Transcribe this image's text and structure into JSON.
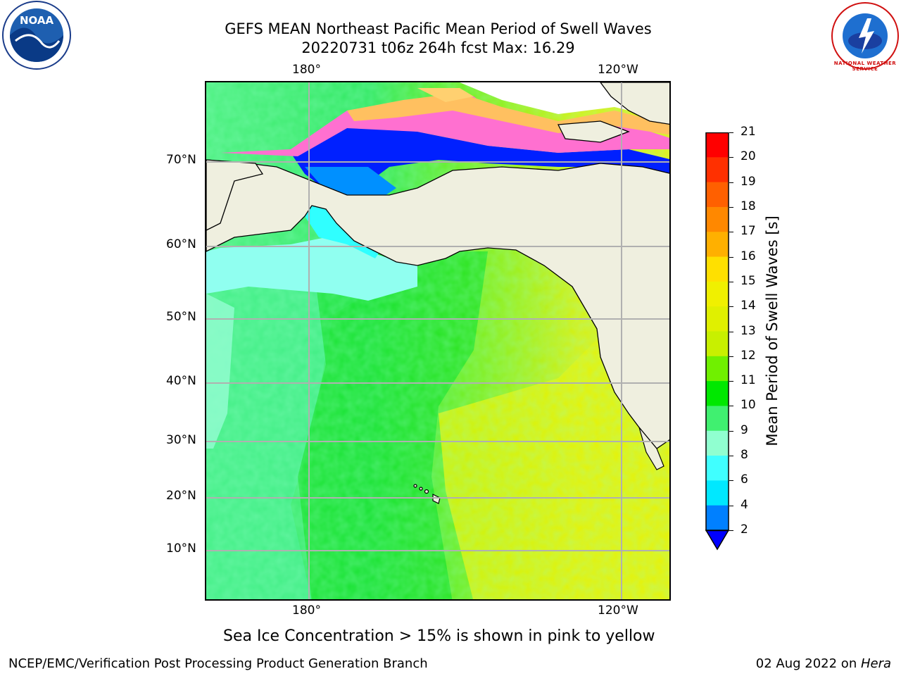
{
  "title": {
    "line1": "GEFS MEAN Northeast Pacific Mean Period of Swell Waves",
    "line2": "20220731 t06z 264h fcst   Max: 16.29"
  },
  "logos": {
    "left_text": "NOAA",
    "right_text": "NATIONAL WEATHER SERVICE",
    "left_icon": "noaa-logo",
    "right_icon": "nws-logo"
  },
  "map": {
    "lon_labels_top": [
      "180°",
      "120°W"
    ],
    "lon_labels_bottom": [
      "180°",
      "120°W"
    ],
    "lat_labels": [
      "70°N",
      "60°N",
      "50°N",
      "40°N",
      "30°N",
      "20°N",
      "10°N"
    ],
    "land_color": "#efefdf",
    "grid_color": "#b0b0b0"
  },
  "colorbar": {
    "label": "Mean Period of Swell Waves [s]",
    "ticks": [
      "21",
      "20",
      "19",
      "18",
      "17",
      "16",
      "15",
      "14",
      "13",
      "12",
      "11",
      "10",
      "9",
      "8",
      "6",
      "4",
      "2"
    ],
    "colors": [
      "#ff0000",
      "#ff3000",
      "#ff6000",
      "#ff8800",
      "#ffb000",
      "#ffe000",
      "#f0f000",
      "#e0f000",
      "#c8f000",
      "#70f000",
      "#00e800",
      "#40f070",
      "#90ffd0",
      "#40ffff",
      "#00e8ff",
      "#0080ff"
    ],
    "under_color": "#0000ff"
  },
  "note": "Sea Ice Concentration > 15% is shown in pink to yellow",
  "footer": {
    "left": "NCEP/EMC/Verification Post Processing Product Generation Branch",
    "right_date": "02 Aug 2022 on ",
    "right_host": "Hera"
  }
}
